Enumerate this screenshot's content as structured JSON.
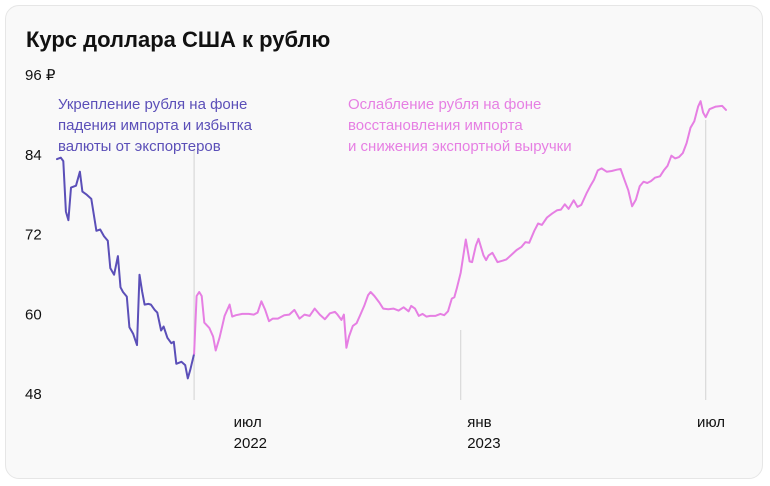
{
  "chart_data": {
    "type": "line",
    "title": "Курс доллара США к рублю",
    "xlabel": "",
    "ylabel": "",
    "x_range": [
      "2022-02-15",
      "2023-07-27"
    ],
    "ylim": [
      48,
      96
    ],
    "y_ticks": [
      {
        "value": 96,
        "label": "96 ₽"
      },
      {
        "value": 84,
        "label": "84"
      },
      {
        "value": 72,
        "label": "72"
      },
      {
        "value": 60,
        "label": "60"
      },
      {
        "value": 48,
        "label": "48"
      }
    ],
    "x_ticks": [
      {
        "date": "2022-07-01",
        "label": "июл",
        "label2": "2022"
      },
      {
        "date": "2023-01-01",
        "label": "янв",
        "label2": "2023"
      },
      {
        "date": "2023-07-01",
        "label": "июл",
        "label2": ""
      }
    ],
    "grid": false,
    "colors": {
      "strengthening": "#5b4fb8",
      "weakening": "#e67fe3",
      "marker": "#d9d9d9"
    },
    "series": [
      {
        "color": "#5b4fb8",
        "points": [
          [
            "2022-02-15",
            83.2
          ],
          [
            "2022-02-18",
            83.4
          ],
          [
            "2022-02-20",
            82.9
          ],
          [
            "2022-02-22",
            75.3
          ],
          [
            "2022-02-24",
            74.0
          ],
          [
            "2022-02-26",
            78.9
          ],
          [
            "2022-03-02",
            79.2
          ],
          [
            "2022-03-05",
            81.3
          ],
          [
            "2022-03-07",
            78.3
          ],
          [
            "2022-03-10",
            77.9
          ],
          [
            "2022-03-14",
            77.2
          ],
          [
            "2022-03-18",
            72.4
          ],
          [
            "2022-03-21",
            72.6
          ],
          [
            "2022-03-24",
            71.6
          ],
          [
            "2022-03-27",
            70.9
          ],
          [
            "2022-03-29",
            66.8
          ],
          [
            "2022-04-01",
            65.8
          ],
          [
            "2022-04-04",
            68.6
          ],
          [
            "2022-04-06",
            63.9
          ],
          [
            "2022-04-08",
            63.2
          ],
          [
            "2022-04-11",
            62.5
          ],
          [
            "2022-04-13",
            57.9
          ],
          [
            "2022-04-16",
            56.9
          ],
          [
            "2022-04-19",
            55.2
          ],
          [
            "2022-04-21",
            65.8
          ],
          [
            "2022-04-23",
            63.3
          ],
          [
            "2022-04-25",
            61.3
          ],
          [
            "2022-04-28",
            61.4
          ],
          [
            "2022-04-30",
            61.3
          ],
          [
            "2022-05-03",
            60.5
          ],
          [
            "2022-05-05",
            60.1
          ],
          [
            "2022-05-08",
            57.4
          ],
          [
            "2022-05-10",
            58.0
          ],
          [
            "2022-05-13",
            56.3
          ],
          [
            "2022-05-16",
            55.5
          ],
          [
            "2022-05-18",
            55.7
          ],
          [
            "2022-05-20",
            52.4
          ],
          [
            "2022-05-24",
            52.7
          ],
          [
            "2022-05-27",
            52.2
          ],
          [
            "2022-05-29",
            50.2
          ],
          [
            "2022-05-31",
            51.5
          ],
          [
            "2022-06-03",
            53.9
          ]
        ]
      },
      {
        "color": "#e67fe3",
        "points": [
          [
            "2022-06-03",
            53.9
          ],
          [
            "2022-06-05",
            62.6
          ],
          [
            "2022-06-07",
            63.2
          ],
          [
            "2022-06-09",
            62.6
          ],
          [
            "2022-06-11",
            58.6
          ],
          [
            "2022-06-15",
            57.8
          ],
          [
            "2022-06-18",
            56.5
          ],
          [
            "2022-06-20",
            54.4
          ],
          [
            "2022-06-23",
            56.3
          ],
          [
            "2022-06-25",
            57.9
          ],
          [
            "2022-06-27",
            59.6
          ],
          [
            "2022-07-01",
            61.3
          ],
          [
            "2022-07-03",
            59.5
          ],
          [
            "2022-07-06",
            59.7
          ],
          [
            "2022-07-11",
            59.9
          ],
          [
            "2022-07-16",
            59.9
          ],
          [
            "2022-07-20",
            59.8
          ],
          [
            "2022-07-23",
            60.1
          ],
          [
            "2022-07-26",
            61.8
          ],
          [
            "2022-07-29",
            60.5
          ],
          [
            "2022-08-01",
            58.8
          ],
          [
            "2022-08-04",
            59.2
          ],
          [
            "2022-08-08",
            59.2
          ],
          [
            "2022-08-13",
            59.7
          ],
          [
            "2022-08-17",
            59.8
          ],
          [
            "2022-08-21",
            60.5
          ],
          [
            "2022-08-25",
            59.2
          ],
          [
            "2022-08-29",
            59.8
          ],
          [
            "2022-09-02",
            59.6
          ],
          [
            "2022-09-06",
            60.7
          ],
          [
            "2022-09-10",
            59.8
          ],
          [
            "2022-09-14",
            59.1
          ],
          [
            "2022-09-18",
            60.0
          ],
          [
            "2022-09-22",
            60.2
          ],
          [
            "2022-09-24",
            59.8
          ],
          [
            "2022-09-27",
            59.0
          ],
          [
            "2022-09-29",
            59.8
          ],
          [
            "2022-10-01",
            54.8
          ],
          [
            "2022-10-03",
            56.5
          ],
          [
            "2022-10-06",
            58.1
          ],
          [
            "2022-10-09",
            58.5
          ],
          [
            "2022-10-12",
            59.8
          ],
          [
            "2022-10-15",
            61.1
          ],
          [
            "2022-10-18",
            62.7
          ],
          [
            "2022-10-20",
            63.2
          ],
          [
            "2022-10-23",
            62.6
          ],
          [
            "2022-10-27",
            61.6
          ],
          [
            "2022-10-30",
            60.7
          ],
          [
            "2022-11-03",
            60.6
          ],
          [
            "2022-11-07",
            60.7
          ],
          [
            "2022-11-11",
            60.4
          ],
          [
            "2022-11-15",
            60.9
          ],
          [
            "2022-11-19",
            60.3
          ],
          [
            "2022-11-21",
            61.1
          ],
          [
            "2022-11-24",
            60.7
          ],
          [
            "2022-11-27",
            59.6
          ],
          [
            "2022-11-30",
            59.9
          ],
          [
            "2022-12-03",
            59.5
          ],
          [
            "2022-12-06",
            59.6
          ],
          [
            "2022-12-10",
            59.6
          ],
          [
            "2022-12-14",
            59.9
          ],
          [
            "2022-12-17",
            59.7
          ],
          [
            "2022-12-20",
            60.3
          ],
          [
            "2022-12-23",
            62.2
          ],
          [
            "2022-12-25",
            62.4
          ],
          [
            "2022-12-27",
            63.8
          ],
          [
            "2022-12-30",
            66.1
          ],
          [
            "2023-01-03",
            71.1
          ],
          [
            "2023-01-06",
            67.8
          ],
          [
            "2023-01-08",
            67.7
          ],
          [
            "2023-01-11",
            70.2
          ],
          [
            "2023-01-13",
            71.2
          ],
          [
            "2023-01-17",
            68.7
          ],
          [
            "2023-01-19",
            68.0
          ],
          [
            "2023-01-21",
            68.7
          ],
          [
            "2023-01-24",
            69.1
          ],
          [
            "2023-01-28",
            67.7
          ],
          [
            "2023-02-01",
            67.9
          ],
          [
            "2023-02-04",
            68.1
          ],
          [
            "2023-02-08",
            68.8
          ],
          [
            "2023-02-12",
            69.5
          ],
          [
            "2023-02-16",
            70.0
          ],
          [
            "2023-02-19",
            70.7
          ],
          [
            "2023-02-22",
            70.6
          ],
          [
            "2023-02-26",
            72.4
          ],
          [
            "2023-03-01",
            73.5
          ],
          [
            "2023-03-04",
            73.3
          ],
          [
            "2023-03-08",
            74.4
          ],
          [
            "2023-03-12",
            75.0
          ],
          [
            "2023-03-16",
            75.5
          ],
          [
            "2023-03-19",
            75.6
          ],
          [
            "2023-03-22",
            76.4
          ],
          [
            "2023-03-25",
            75.7
          ],
          [
            "2023-03-29",
            77.0
          ],
          [
            "2023-04-01",
            76.0
          ],
          [
            "2023-04-04",
            76.3
          ],
          [
            "2023-04-08",
            78.0
          ],
          [
            "2023-04-11",
            79.1
          ],
          [
            "2023-04-14",
            80.1
          ],
          [
            "2023-04-17",
            81.5
          ],
          [
            "2023-04-20",
            81.8
          ],
          [
            "2023-04-24",
            81.3
          ],
          [
            "2023-04-28",
            81.4
          ],
          [
            "2023-05-02",
            81.6
          ],
          [
            "2023-05-05",
            81.7
          ],
          [
            "2023-05-08",
            80.1
          ],
          [
            "2023-05-11",
            78.5
          ],
          [
            "2023-05-14",
            76.1
          ],
          [
            "2023-05-17",
            77.1
          ],
          [
            "2023-05-20",
            79.1
          ],
          [
            "2023-05-23",
            79.8
          ],
          [
            "2023-05-26",
            79.6
          ],
          [
            "2023-05-29",
            79.9
          ],
          [
            "2023-06-01",
            80.4
          ],
          [
            "2023-06-05",
            80.6
          ],
          [
            "2023-06-08",
            81.5
          ],
          [
            "2023-06-11",
            82.2
          ],
          [
            "2023-06-14",
            83.7
          ],
          [
            "2023-06-17",
            83.3
          ],
          [
            "2023-06-20",
            83.5
          ],
          [
            "2023-06-23",
            84.1
          ],
          [
            "2023-06-26",
            85.6
          ],
          [
            "2023-06-29",
            87.9
          ],
          [
            "2023-07-02",
            88.9
          ],
          [
            "2023-07-05",
            91.1
          ],
          [
            "2023-07-07",
            91.9
          ],
          [
            "2023-07-09",
            90.2
          ],
          [
            "2023-07-11",
            89.5
          ],
          [
            "2023-07-14",
            90.7
          ],
          [
            "2023-07-19",
            91.1
          ],
          [
            "2023-07-24",
            91.2
          ],
          [
            "2023-07-27",
            90.6
          ]
        ]
      }
    ],
    "annotations": [
      {
        "lines": [
          "Укрепление рубля на фоне",
          "падения импорта и избытка",
          "валюты от экспортеров"
        ],
        "color": "#5b4fb8",
        "date": "2022-05-04"
      },
      {
        "lines": [
          "Ослабление рубля на фоне",
          "восстановления импорта",
          "и снижения экспортной выручки"
        ],
        "color": "#e67fe3",
        "date": "2023-01-05"
      }
    ],
    "markers": [
      "2022-06-03",
      "2022-12-30",
      "2023-07-11"
    ]
  }
}
